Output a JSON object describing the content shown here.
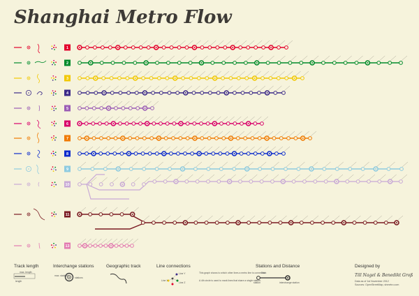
{
  "title": "Shanghai Metro Flow",
  "colors": {
    "background": "#f6f3dc",
    "text": "#3d3a36"
  },
  "lines": [
    {
      "number": "1",
      "color": "#e3002b",
      "stations": 28,
      "branch": false
    },
    {
      "number": "2",
      "color": "#008b2b",
      "stations": 30,
      "branch": false
    },
    {
      "number": "3",
      "color": "#f2c800",
      "stations": 29,
      "branch": false
    },
    {
      "number": "4",
      "color": "#3c2a88",
      "stations": 26,
      "branch": false
    },
    {
      "number": "5",
      "color": "#9b5db5",
      "stations": 11,
      "branch": false
    },
    {
      "number": "6",
      "color": "#d8006a",
      "stations": 28,
      "branch": false
    },
    {
      "number": "7",
      "color": "#f07a00",
      "stations": 33,
      "branch": false
    },
    {
      "number": "8",
      "color": "#0d2ccc",
      "stations": 30,
      "branch": false
    },
    {
      "number": "9",
      "color": "#8ecbe0",
      "stations": 26,
      "branch": false
    },
    {
      "number": "10",
      "color": "#c8a9d6",
      "stations": 31,
      "branch": true
    },
    {
      "number": "11",
      "color": "#7a1a22",
      "stations": 31,
      "branch": true
    },
    {
      "number": "13",
      "color": "#e27ab0",
      "stations": 11,
      "branch": false
    }
  ],
  "legend": {
    "track_length": "Track length",
    "track_length_sub": [
      "max. length",
      "length"
    ],
    "interchange": "Interchange stations",
    "interchange_sub": [
      "max. stations",
      "stations"
    ],
    "geographic": "Geographic track",
    "connections": "Line connections",
    "connections_note": "This graph shows to which other lines a metro line is connected.",
    "connections_note2": "A 4th circle is used to mark lines that share a single station.",
    "connections_labels": [
      "Line X",
      "Line Y",
      "Line Z"
    ],
    "stations": "Stations and Distance",
    "stations_sub": [
      "station",
      "interchange station"
    ],
    "distance_label": "3 km"
  },
  "credits": {
    "heading": "Designed by",
    "authors": "Till Nagel & Benedikt Groß",
    "data_line": "Data as of 1st November 2012",
    "source_line": "Sources: OpenStreetMap, shmetro.com"
  }
}
